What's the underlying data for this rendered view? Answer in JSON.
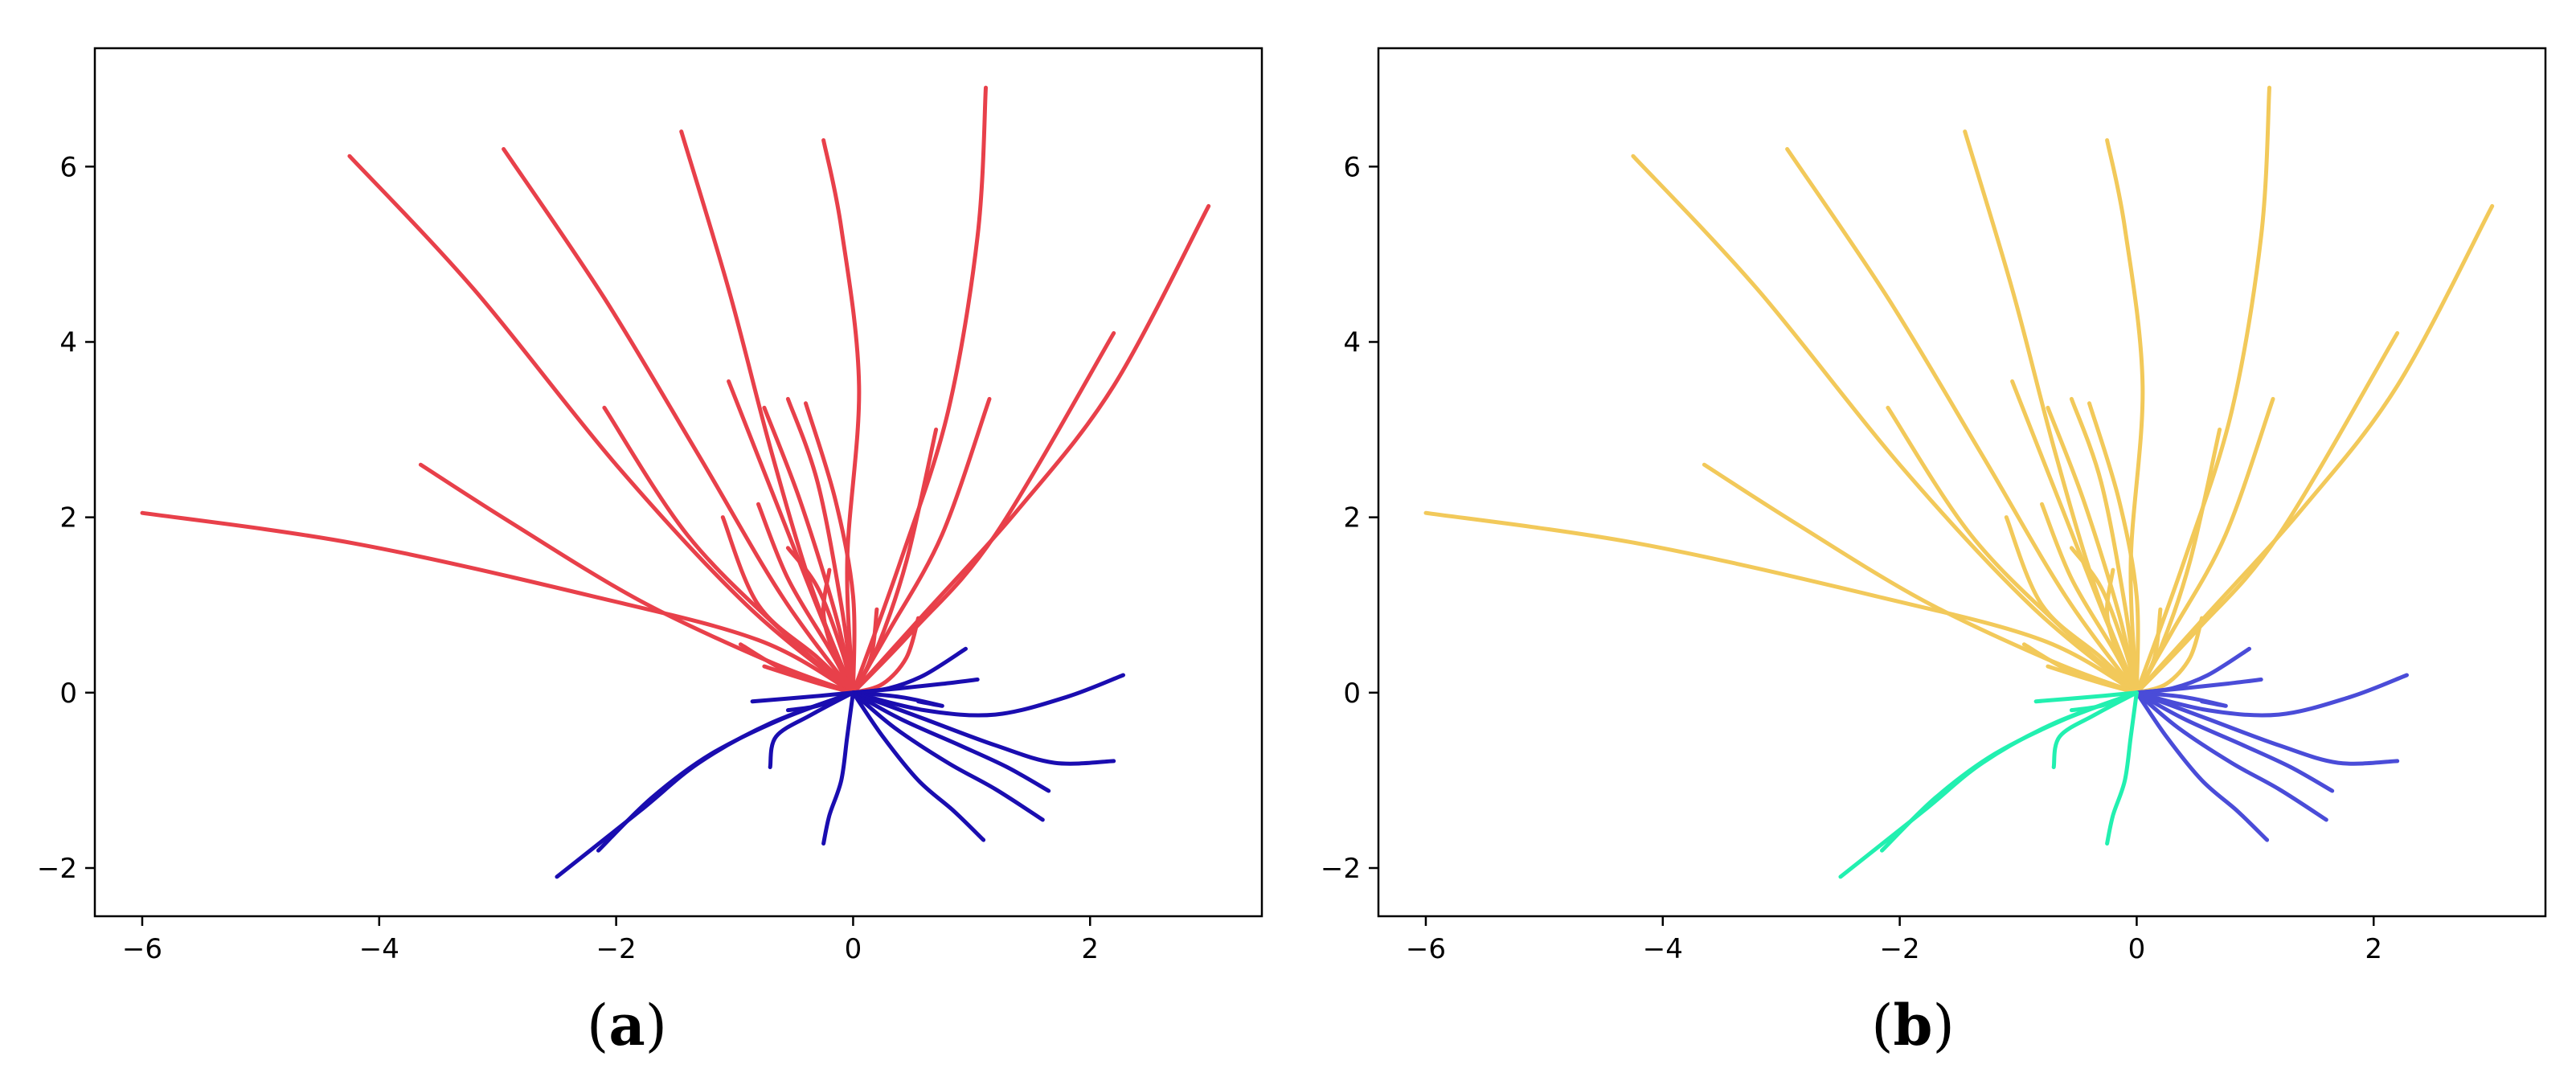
{
  "panels": [
    {
      "label_letter": "a",
      "label_text": "(a)",
      "colors": {
        "red": "#E8404A",
        "blue": "#1A0DB0",
        "green": "#1A0DB0"
      }
    },
    {
      "label_letter": "b",
      "label_text": "(b)",
      "colors": {
        "red": "#F2C95A",
        "blue": "#4A4CD8",
        "green": "#22F0B0"
      }
    }
  ],
  "chart_data": {
    "type": "line",
    "description_of_groups": "red = upward/left-fanning trajectories, blue = lower-right trajectories, green = lower-left trajectories",
    "xlim": [
      -6.4,
      3.45
    ],
    "ylim": [
      -2.55,
      7.35
    ],
    "xticks": [
      -6,
      -4,
      -2,
      0,
      2
    ],
    "xtick_labels": [
      "−6",
      "−4",
      "−2",
      "0",
      "2"
    ],
    "yticks": [
      -2,
      0,
      2,
      4,
      6
    ],
    "ytick_labels": [
      "−2",
      "0",
      "2",
      "4",
      "6"
    ],
    "series": [
      {
        "group": "red",
        "points": [
          [
            0,
            0
          ],
          [
            -0.8,
            0.6
          ],
          [
            -2.2,
            1.1
          ],
          [
            -4.2,
            1.7
          ],
          [
            -6.0,
            2.05
          ]
        ]
      },
      {
        "group": "red",
        "points": [
          [
            0,
            0
          ],
          [
            -0.7,
            0.35
          ],
          [
            -1.8,
            1.05
          ],
          [
            -2.9,
            1.95
          ],
          [
            -3.65,
            2.6
          ]
        ]
      },
      {
        "group": "red",
        "points": [
          [
            0,
            0
          ],
          [
            -0.6,
            0.7
          ],
          [
            -1.4,
            1.8
          ],
          [
            -2.1,
            3.25
          ]
        ]
      },
      {
        "group": "red",
        "points": [
          [
            0,
            0
          ],
          [
            -0.9,
            1.0
          ],
          [
            -2.0,
            2.6
          ],
          [
            -3.2,
            4.6
          ],
          [
            -4.25,
            6.12
          ]
        ]
      },
      {
        "group": "red",
        "points": [
          [
            0,
            0
          ],
          [
            -0.6,
            1.1
          ],
          [
            -1.3,
            2.7
          ],
          [
            -2.1,
            4.5
          ],
          [
            -2.95,
            6.2
          ]
        ]
      },
      {
        "group": "red",
        "points": [
          [
            0,
            0
          ],
          [
            -0.35,
            1.2
          ],
          [
            -0.7,
            2.8
          ],
          [
            -1.05,
            4.6
          ],
          [
            -1.45,
            6.4
          ]
        ]
      },
      {
        "group": "red",
        "points": [
          [
            0,
            0
          ],
          [
            -0.05,
            1.5
          ],
          [
            0.05,
            3.5
          ],
          [
            -0.1,
            5.3
          ],
          [
            -0.25,
            6.3
          ]
        ]
      },
      {
        "group": "red",
        "points": [
          [
            0,
            0
          ],
          [
            0.4,
            1.5
          ],
          [
            0.8,
            3.2
          ],
          [
            1.05,
            5.2
          ],
          [
            1.12,
            6.9
          ]
        ]
      },
      {
        "group": "red",
        "points": [
          [
            0,
            0
          ],
          [
            0.6,
            0.9
          ],
          [
            1.4,
            2.1
          ],
          [
            2.2,
            3.5
          ],
          [
            3.0,
            5.55
          ]
        ]
      },
      {
        "group": "red",
        "points": [
          [
            0,
            0
          ],
          [
            0.5,
            0.7
          ],
          [
            1.2,
            1.8
          ],
          [
            2.2,
            4.1
          ]
        ]
      },
      {
        "group": "red",
        "points": [
          [
            0,
            0
          ],
          [
            0.3,
            0.7
          ],
          [
            0.75,
            1.8
          ],
          [
            1.15,
            3.35
          ]
        ]
      },
      {
        "group": "red",
        "points": [
          [
            0,
            0
          ],
          [
            0.2,
            0.5
          ],
          [
            0.45,
            1.5
          ],
          [
            0.7,
            3.0
          ]
        ]
      },
      {
        "group": "red",
        "points": [
          [
            0,
            0
          ],
          [
            -0.25,
            0.8
          ],
          [
            -0.6,
            2.0
          ],
          [
            -1.05,
            3.55
          ]
        ]
      },
      {
        "group": "red",
        "points": [
          [
            0,
            0
          ],
          [
            -0.15,
            0.9
          ],
          [
            -0.45,
            2.2
          ],
          [
            -0.75,
            3.25
          ]
        ]
      },
      {
        "group": "red",
        "points": [
          [
            0,
            0
          ],
          [
            -0.1,
            1.0
          ],
          [
            -0.3,
            2.4
          ],
          [
            -0.55,
            3.35
          ]
        ]
      },
      {
        "group": "red",
        "points": [
          [
            0,
            0
          ],
          [
            0.0,
            1.1
          ],
          [
            -0.15,
            2.2
          ],
          [
            -0.4,
            3.3
          ]
        ]
      },
      {
        "group": "red",
        "points": [
          [
            0,
            0
          ],
          [
            -0.3,
            0.4
          ],
          [
            -0.8,
            1.0
          ],
          [
            -1.1,
            2.0
          ]
        ]
      },
      {
        "group": "red",
        "points": [
          [
            0,
            0
          ],
          [
            -0.2,
            0.5
          ],
          [
            -0.55,
            1.3
          ],
          [
            -0.8,
            2.15
          ]
        ]
      },
      {
        "group": "red",
        "points": [
          [
            0,
            0
          ],
          [
            -0.5,
            0.2
          ],
          [
            -0.95,
            0.55
          ]
        ]
      },
      {
        "group": "red",
        "points": [
          [
            0,
            0
          ],
          [
            -0.4,
            0.15
          ],
          [
            -0.75,
            0.3
          ]
        ]
      },
      {
        "group": "red",
        "points": [
          [
            0,
            0
          ],
          [
            0.25,
            0.1
          ],
          [
            0.45,
            0.4
          ],
          [
            0.55,
            0.85
          ]
        ]
      },
      {
        "group": "red",
        "points": [
          [
            0,
            0
          ],
          [
            -0.15,
            0.4
          ],
          [
            -0.25,
            0.9
          ],
          [
            -0.2,
            1.4
          ]
        ]
      },
      {
        "group": "red",
        "points": [
          [
            0,
            0
          ],
          [
            0.15,
            0.4
          ],
          [
            0.2,
            0.95
          ]
        ]
      },
      {
        "group": "red",
        "points": [
          [
            0,
            0
          ],
          [
            -0.1,
            0.5
          ],
          [
            -0.3,
            1.2
          ],
          [
            -0.55,
            1.65
          ]
        ]
      },
      {
        "group": "blue",
        "points": [
          [
            0,
            0
          ],
          [
            0.4,
            -0.05
          ],
          [
            0.75,
            -0.15
          ],
          [
            0.55,
            -0.1
          ]
        ]
      },
      {
        "group": "blue",
        "points": [
          [
            0,
            0
          ],
          [
            0.3,
            0.05
          ],
          [
            0.6,
            0.2
          ],
          [
            0.95,
            0.5
          ]
        ]
      },
      {
        "group": "blue",
        "points": [
          [
            0,
            0
          ],
          [
            0.4,
            0.05
          ],
          [
            0.75,
            0.1
          ],
          [
            1.05,
            0.15
          ]
        ]
      },
      {
        "group": "blue",
        "points": [
          [
            0,
            0
          ],
          [
            0.6,
            -0.2
          ],
          [
            1.2,
            -0.25
          ],
          [
            1.8,
            -0.05
          ],
          [
            2.28,
            0.2
          ]
        ]
      },
      {
        "group": "blue",
        "points": [
          [
            0,
            0
          ],
          [
            0.6,
            -0.3
          ],
          [
            1.2,
            -0.6
          ],
          [
            1.7,
            -0.8
          ],
          [
            2.2,
            -0.78
          ]
        ]
      },
      {
        "group": "blue",
        "points": [
          [
            0,
            0
          ],
          [
            0.4,
            -0.3
          ],
          [
            0.9,
            -0.6
          ],
          [
            1.3,
            -0.85
          ],
          [
            1.65,
            -1.12
          ]
        ]
      },
      {
        "group": "blue",
        "points": [
          [
            0,
            0
          ],
          [
            0.35,
            -0.4
          ],
          [
            0.8,
            -0.8
          ],
          [
            1.2,
            -1.1
          ],
          [
            1.6,
            -1.45
          ]
        ]
      },
      {
        "group": "blue",
        "points": [
          [
            0,
            0
          ],
          [
            0.25,
            -0.5
          ],
          [
            0.55,
            -1.0
          ],
          [
            0.85,
            -1.35
          ],
          [
            1.1,
            -1.68
          ]
        ]
      },
      {
        "group": "green",
        "points": [
          [
            0,
            0
          ],
          [
            -0.4,
            -0.05
          ],
          [
            -0.85,
            -0.1
          ]
        ]
      },
      {
        "group": "green",
        "points": [
          [
            0,
            0
          ],
          [
            -0.35,
            -0.25
          ],
          [
            -0.65,
            -0.5
          ],
          [
            -0.7,
            -0.85
          ]
        ]
      },
      {
        "group": "green",
        "points": [
          [
            0,
            0
          ],
          [
            -0.6,
            -0.3
          ],
          [
            -1.2,
            -0.7
          ],
          [
            -1.7,
            -1.2
          ],
          [
            -2.15,
            -1.8
          ]
        ]
      },
      {
        "group": "green",
        "points": [
          [
            0,
            0
          ],
          [
            -0.7,
            -0.35
          ],
          [
            -1.3,
            -0.8
          ],
          [
            -1.8,
            -1.35
          ],
          [
            -2.5,
            -2.1
          ]
        ]
      },
      {
        "group": "green",
        "points": [
          [
            0,
            0
          ],
          [
            -0.05,
            -0.5
          ],
          [
            -0.1,
            -1.0
          ],
          [
            -0.2,
            -1.4
          ],
          [
            -0.25,
            -1.72
          ]
        ]
      },
      {
        "group": "green",
        "points": [
          [
            0,
            0
          ],
          [
            -0.3,
            -0.15
          ],
          [
            -0.55,
            -0.2
          ]
        ]
      }
    ]
  }
}
